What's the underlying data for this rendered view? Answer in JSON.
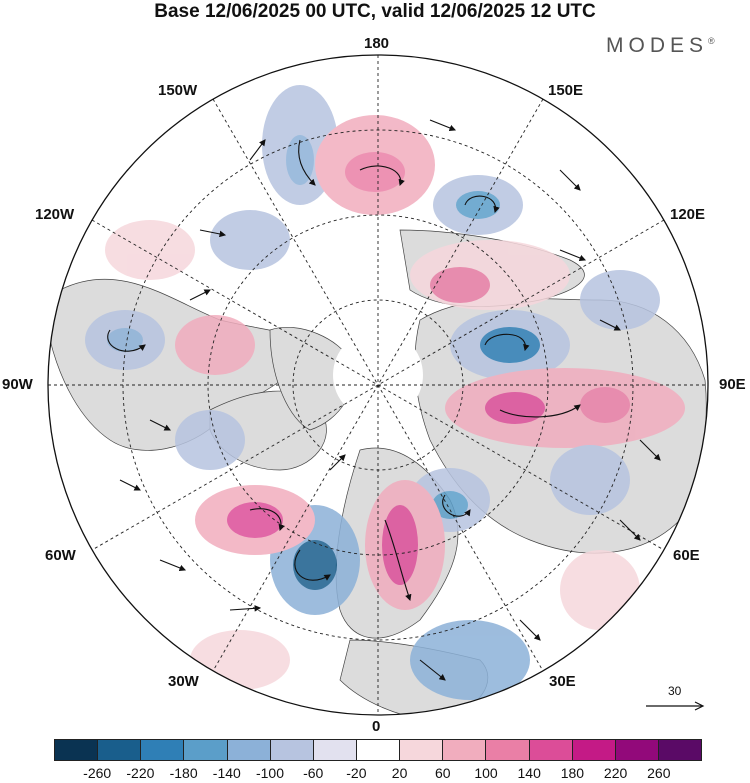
{
  "title": "Base 12/06/2025 00 UTC, valid 12/06/2025 12 UTC",
  "brand": {
    "name": "MODES",
    "mark": "®"
  },
  "map_labels": {
    "n180": "180",
    "w150": "150W",
    "e150": "150E",
    "w120": "120W",
    "e120": "120E",
    "w90": "90W",
    "e90": "90E",
    "w60": "60W",
    "e60": "60E",
    "w30": "30W",
    "e30": "30E",
    "s0": "0"
  },
  "vector_reference": "30",
  "colorbar": {
    "colors": [
      "#0a3352",
      "#195e8c",
      "#2f7fb6",
      "#5b9ec9",
      "#8cb1d8",
      "#b7c4e0",
      "#e2e1ef",
      "#ffffff",
      "#f6d7dc",
      "#f1adbe",
      "#ea7fa6",
      "#dc4d98",
      "#c41a86",
      "#92097a",
      "#5a0a66"
    ],
    "ticks": [
      "-260",
      "-220",
      "-180",
      "-140",
      "-100",
      "-60",
      "-20",
      "20",
      "60",
      "100",
      "140",
      "180",
      "220",
      "260"
    ]
  },
  "colors": {
    "frame": "#222222",
    "coast": "#444444",
    "land": "#d9d9d9",
    "ocean": "#ffffff"
  }
}
